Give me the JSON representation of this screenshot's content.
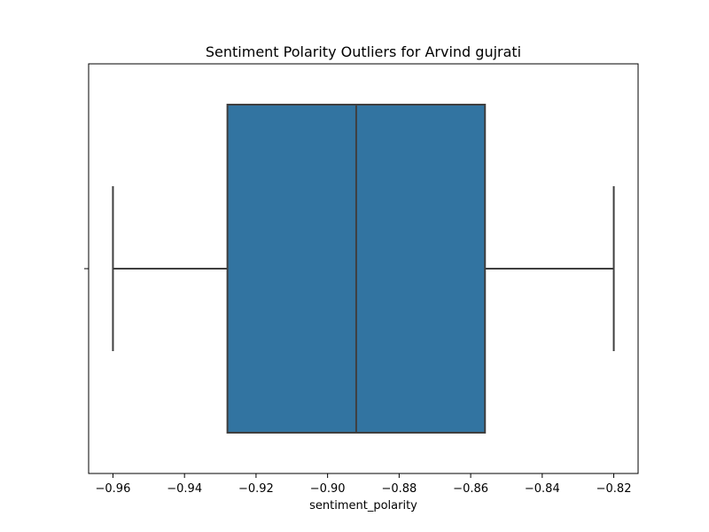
{
  "chart_data": {
    "type": "box",
    "title": "Sentiment Polarity Outliers for Arvind gujrati",
    "xlabel": "sentiment_polarity",
    "ylabel": "",
    "xlim": [
      -0.9668,
      -0.8132
    ],
    "xticks": [
      -0.96,
      -0.94,
      -0.92,
      -0.9,
      -0.88,
      -0.86,
      -0.84,
      -0.82
    ],
    "xtick_labels": [
      "−0.96",
      "−0.94",
      "−0.92",
      "−0.90",
      "−0.88",
      "−0.86",
      "−0.84",
      "−0.82"
    ],
    "box": {
      "whisker_low": -0.96,
      "q1": -0.928,
      "median": -0.892,
      "q3": -0.856,
      "whisker_high": -0.82
    },
    "outliers": [],
    "grid": false,
    "colors": {
      "box_fill": "#3274a1",
      "line": "#3f3f3f",
      "axes": "#000000"
    }
  }
}
